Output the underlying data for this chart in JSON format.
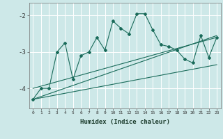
{
  "xlabel": "Humidex (Indice chaleur)",
  "background_color": "#cde8e8",
  "grid_color": "#ffffff",
  "line_color": "#1a6b5a",
  "xlim": [
    -0.5,
    23.5
  ],
  "ylim": [
    -4.55,
    -1.65
  ],
  "yticks": [
    -4,
    -3,
    -2
  ],
  "xticks": [
    0,
    1,
    2,
    3,
    4,
    5,
    6,
    7,
    8,
    9,
    10,
    11,
    12,
    13,
    14,
    15,
    16,
    17,
    18,
    19,
    20,
    21,
    22,
    23
  ],
  "series1_x": [
    0,
    1,
    2,
    3,
    4,
    5,
    6,
    7,
    8,
    9,
    10,
    11,
    12,
    13,
    14,
    15,
    16,
    17,
    18,
    19,
    20,
    21,
    22,
    23
  ],
  "series1_y": [
    -4.3,
    -4.0,
    -4.0,
    -3.0,
    -2.75,
    -3.75,
    -3.1,
    -3.0,
    -2.6,
    -2.95,
    -2.15,
    -2.35,
    -2.5,
    -1.95,
    -1.95,
    -2.4,
    -2.8,
    -2.85,
    -2.95,
    -3.2,
    -3.3,
    -2.55,
    -3.15,
    -2.6
  ],
  "series2_x": [
    0,
    23
  ],
  "series2_y": [
    -4.3,
    -2.55
  ],
  "series3_x": [
    0,
    23
  ],
  "series3_y": [
    -4.3,
    -3.35
  ],
  "series4_x": [
    0,
    23
  ],
  "series4_y": [
    -4.0,
    -2.6
  ]
}
